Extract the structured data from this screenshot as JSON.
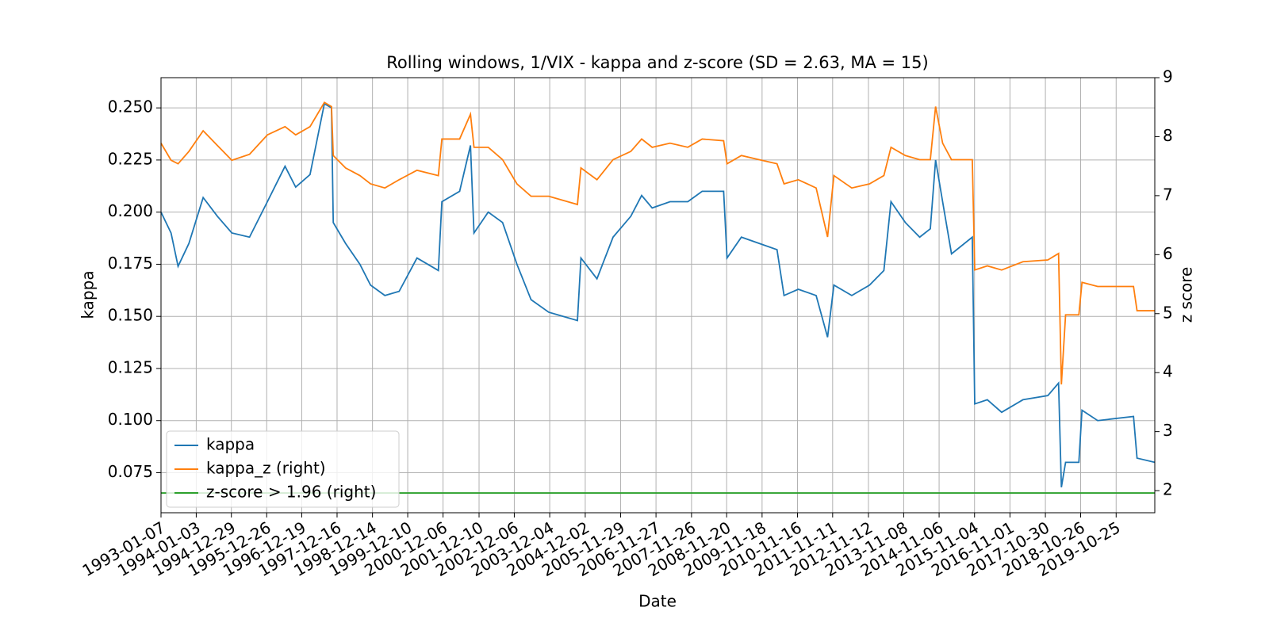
{
  "chart_data": {
    "type": "line",
    "title": "Rolling windows, 1/VIX - kappa and z-score (SD = 2.63, MA = 15)",
    "xlabel": "Date",
    "ylabel": "kappa",
    "y2label": "z score",
    "x": [
      "1993-01-07",
      "1993-04-20",
      "1993-07-01",
      "1993-10-20",
      "1994-03-15",
      "1994-08-08",
      "1995-01-03",
      "1995-07-03",
      "1996-01-02",
      "1996-07-01",
      "1996-10-18",
      "1997-03-14",
      "1997-08-08",
      "1997-10-20",
      "1997-11-07",
      "1998-03-13",
      "1998-08-07",
      "1998-11-24",
      "1999-04-20",
      "1999-09-13",
      "2000-03-14",
      "2000-10-19",
      "2000-11-24",
      "2001-05-25",
      "2001-09-13",
      "2001-10-19",
      "2002-03-14",
      "2002-08-08",
      "2003-01-02",
      "2003-05-27",
      "2003-11-24",
      "2004-04-20",
      "2004-09-13",
      "2004-10-19",
      "2005-04-01",
      "2005-09-13",
      "2006-03-14",
      "2006-07-03",
      "2006-10-19",
      "2007-04-20",
      "2007-10-19",
      "2008-03-14",
      "2008-10-20",
      "2008-11-24",
      "2009-04-20",
      "2009-10-19",
      "2010-04-20",
      "2010-07-01",
      "2010-11-24",
      "2011-05-26",
      "2011-09-20",
      "2011-11-24",
      "2012-05-25",
      "2012-11-23",
      "2013-04-19",
      "2013-07-01",
      "2013-11-25",
      "2014-04-21",
      "2014-08-08",
      "2014-10-01",
      "2014-12-12",
      "2015-03-13",
      "2015-10-12",
      "2015-11-06",
      "2016-03-14",
      "2016-08-08",
      "2017-03-14",
      "2017-11-24",
      "2018-03-14",
      "2018-04-12",
      "2018-05-25",
      "2018-10-08",
      "2018-11-09",
      "2019-04-19",
      "2020-04-20",
      "2020-05-26",
      "2020-11-24"
    ],
    "series": [
      {
        "name": "kappa",
        "color": "#1f77b4",
        "values": [
          0.2,
          0.19,
          0.174,
          0.185,
          0.207,
          0.198,
          0.19,
          0.188,
          0.205,
          0.222,
          0.212,
          0.218,
          0.252,
          0.25,
          0.195,
          0.185,
          0.175,
          0.165,
          0.16,
          0.162,
          0.178,
          0.172,
          0.205,
          0.21,
          0.232,
          0.19,
          0.2,
          0.195,
          0.175,
          0.158,
          0.152,
          0.15,
          0.148,
          0.178,
          0.168,
          0.188,
          0.198,
          0.208,
          0.202,
          0.205,
          0.205,
          0.21,
          0.21,
          0.178,
          0.188,
          0.185,
          0.182,
          0.16,
          0.163,
          0.16,
          0.14,
          0.165,
          0.16,
          0.165,
          0.172,
          0.205,
          0.195,
          0.188,
          0.192,
          0.225,
          0.205,
          0.18,
          0.188,
          0.108,
          0.11,
          0.104,
          0.11,
          0.112,
          0.118,
          0.068,
          0.08,
          0.08,
          0.105,
          0.1,
          0.102,
          0.082,
          0.08
        ]
      },
      {
        "name": "kappa_z (right)",
        "color": "#ff7f0e",
        "axis": "y2",
        "values": [
          7.89,
          7.6,
          7.54,
          7.75,
          8.1,
          7.85,
          7.6,
          7.7,
          8.03,
          8.17,
          8.03,
          8.17,
          8.58,
          8.51,
          7.68,
          7.47,
          7.34,
          7.2,
          7.13,
          7.27,
          7.43,
          7.34,
          7.96,
          7.96,
          8.38,
          7.82,
          7.82,
          7.61,
          7.2,
          6.99,
          6.99,
          6.92,
          6.85,
          7.47,
          7.27,
          7.61,
          7.75,
          7.96,
          7.82,
          7.89,
          7.82,
          7.96,
          7.93,
          7.54,
          7.68,
          7.61,
          7.54,
          7.2,
          7.27,
          7.13,
          6.3,
          7.34,
          7.13,
          7.2,
          7.34,
          7.82,
          7.68,
          7.61,
          7.61,
          8.51,
          7.89,
          7.61,
          7.61,
          5.74,
          5.81,
          5.74,
          5.88,
          5.91,
          6.02,
          3.8,
          4.98,
          4.98,
          5.53,
          5.46,
          5.46,
          5.05,
          5.05
        ]
      },
      {
        "name": "z-score > 1.96 (right)",
        "color": "#2ca02c",
        "axis": "y2",
        "values": [
          1.96,
          1.96,
          1.96,
          1.96,
          1.96,
          1.96,
          1.96,
          1.96,
          1.96,
          1.96,
          1.96,
          1.96,
          1.96,
          1.96,
          1.96,
          1.96,
          1.96,
          1.96,
          1.96,
          1.96,
          1.96,
          1.96,
          1.96,
          1.96,
          1.96,
          1.96,
          1.96,
          1.96,
          1.96,
          1.96,
          1.96,
          1.96,
          1.96,
          1.96,
          1.96,
          1.96,
          1.96,
          1.96,
          1.96,
          1.96,
          1.96,
          1.96,
          1.96,
          1.96,
          1.96,
          1.96,
          1.96,
          1.96,
          1.96,
          1.96,
          1.96,
          1.96,
          1.96,
          1.96,
          1.96,
          1.96,
          1.96,
          1.96,
          1.96,
          1.96,
          1.96,
          1.96,
          1.96,
          1.96,
          1.96,
          1.96,
          1.96,
          1.96,
          1.96,
          1.96,
          1.96,
          1.96,
          1.96,
          1.96,
          1.96,
          1.96,
          1.96
        ]
      }
    ],
    "xlim": [
      "1993-01-07",
      "2020-11-24"
    ],
    "xticks": [
      "1993-01-07",
      "1994-01-03",
      "1994-12-29",
      "1995-12-26",
      "1996-12-19",
      "1997-12-16",
      "1998-12-14",
      "1999-12-10",
      "2000-12-06",
      "2001-12-10",
      "2002-12-06",
      "2003-12-04",
      "2004-12-02",
      "2005-11-29",
      "2006-11-27",
      "2007-11-26",
      "2008-11-20",
      "2009-11-18",
      "2010-11-16",
      "2011-11-11",
      "2012-11-12",
      "2013-11-08",
      "2014-11-06",
      "2015-11-04",
      "2016-11-01",
      "2017-10-30",
      "2018-10-26",
      "2019-10-25"
    ],
    "ylim": [
      0.0558,
      0.2645
    ],
    "yticks": [
      0.075,
      {
        "value": 0.1,
        "label": "0.100"
      },
      0.125,
      {
        "value": 0.15,
        "label": "0.150"
      },
      0.175,
      {
        "value": 0.2,
        "label": "0.200"
      },
      0.225,
      {
        "value": 0.25,
        "label": "0.250"
      }
    ],
    "y2lim": [
      1.625,
      9
    ],
    "y2ticks": [
      2,
      3,
      4,
      5,
      6,
      7,
      8,
      9
    ],
    "grid": true,
    "legend": "lower left"
  }
}
